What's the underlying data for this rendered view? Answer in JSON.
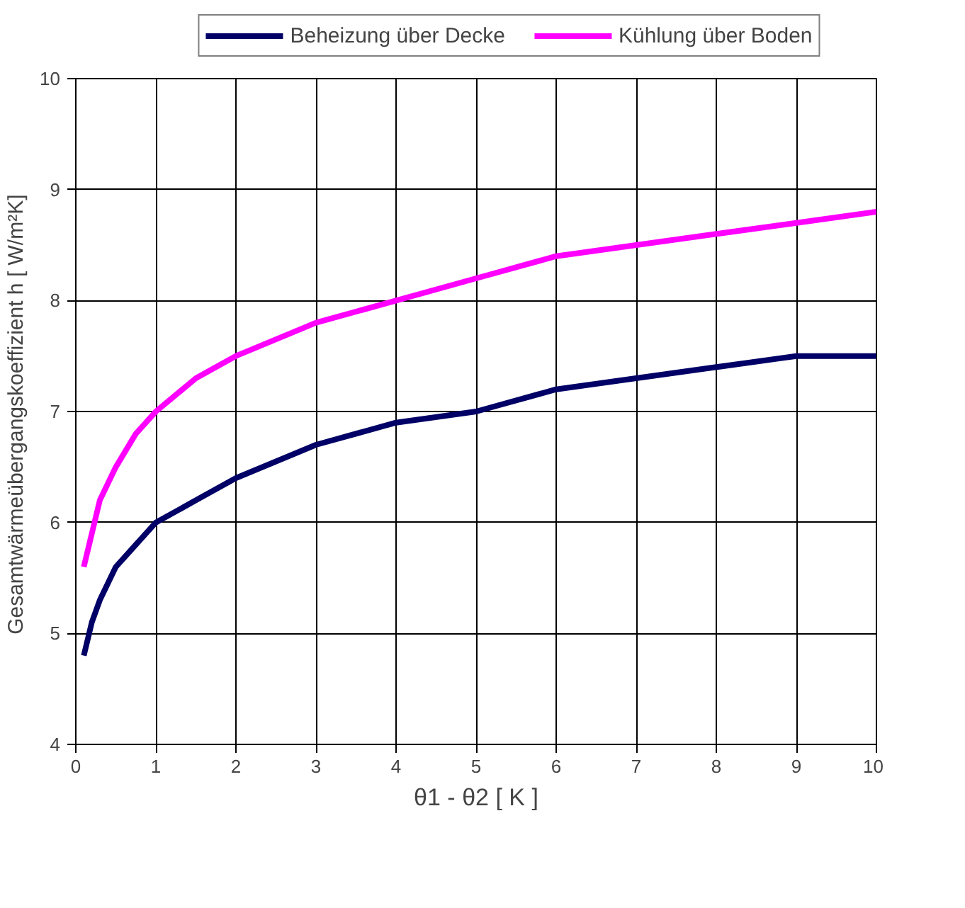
{
  "chart_data": {
    "type": "line",
    "xlabel": "θ1 - θ2 [ K ]",
    "ylabel": "Gesamtwärmeübergangskoeffizient h  [ W/m²K]",
    "x": [
      0.1,
      0.2,
      0.3,
      0.5,
      0.75,
      1,
      1.5,
      2,
      3,
      4,
      5,
      6,
      7,
      8,
      9,
      10
    ],
    "series": [
      {
        "name": "Beheizung über Decke",
        "color": "#000066",
        "values": [
          4.8,
          5.1,
          5.3,
          5.6,
          5.8,
          6.0,
          6.2,
          6.4,
          6.7,
          6.9,
          7.0,
          7.2,
          7.3,
          7.4,
          7.5,
          7.5
        ]
      },
      {
        "name": "Kühlung über Boden",
        "color": "#ff00ff",
        "values": [
          5.6,
          5.9,
          6.2,
          6.5,
          6.8,
          7.0,
          7.3,
          7.5,
          7.8,
          8.0,
          8.2,
          8.4,
          8.5,
          8.6,
          8.7,
          8.8
        ]
      }
    ],
    "xlim": [
      0,
      10
    ],
    "xticks": [
      0,
      1,
      2,
      3,
      4,
      5,
      6,
      7,
      8,
      9,
      10
    ],
    "ylim": [
      4,
      10
    ],
    "yticks": [
      4,
      5,
      6,
      7,
      8,
      9,
      10
    ],
    "grid": true,
    "legend": "top",
    "marker": "none",
    "line_style": "solid"
  }
}
